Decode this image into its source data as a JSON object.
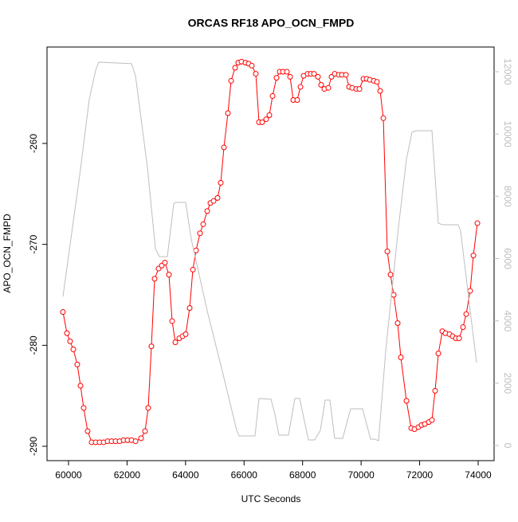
{
  "chart_data": {
    "type": "line",
    "title": "ORCAS RF18 APO_OCN_FMPD",
    "x_label": "UTC Seconds",
    "y_label": "APO_OCN_FMPD",
    "xlim": [
      59265,
      74545
    ],
    "xticks": [
      60000,
      62000,
      64000,
      66000,
      68000,
      70000,
      72000,
      74000
    ],
    "ylim": [
      -291.42,
      -250.45
    ],
    "yticks": [
      -290,
      -280,
      -270,
      -260
    ],
    "y2lim": [
      -486,
      12793
    ],
    "y2ticks": [
      0,
      2000,
      4000,
      6000,
      8000,
      10000,
      12000
    ],
    "series": [
      {
        "color": "#ff0000",
        "markers": true,
        "axis": "y",
        "x": [
          59809,
          59946,
          60054,
          60163,
          60300,
          60409,
          60518,
          60654,
          60790,
          60927,
          61063,
          61199,
          61336,
          61472,
          61608,
          61745,
          61881,
          62017,
          62154,
          62290,
          62479,
          62615,
          62724,
          62833,
          62942,
          63078,
          63187,
          63296,
          63432,
          63541,
          63650,
          63786,
          63895,
          64004,
          64141,
          64250,
          64358,
          64495,
          64604,
          64740,
          64849,
          64958,
          65094,
          65203,
          65312,
          65448,
          65557,
          65693,
          65802,
          65911,
          66047,
          66156,
          66265,
          66401,
          66510,
          66619,
          66755,
          66864,
          66973,
          67110,
          67219,
          67328,
          67464,
          67573,
          67682,
          67818,
          67927,
          68036,
          68172,
          68281,
          68390,
          68526,
          68635,
          68744,
          68880,
          68989,
          69098,
          69234,
          69343,
          69480,
          69589,
          69698,
          69834,
          69943,
          70079,
          70188,
          70297,
          70433,
          70542,
          70651,
          70760,
          70896,
          71005,
          71114,
          71250,
          71359,
          71550,
          71713,
          71822,
          71958,
          72067,
          72176,
          72312,
          72421,
          72530,
          72640,
          72776,
          72885,
          73021,
          73130,
          73239,
          73348,
          73484,
          73593,
          73729,
          73838,
          73974
        ],
        "values": [
          -276.7,
          -278.8,
          -279.6,
          -280.4,
          -281.9,
          -284.0,
          -286.2,
          -288.5,
          -289.6,
          -289.6,
          -289.6,
          -289.6,
          -289.5,
          -289.5,
          -289.5,
          -289.5,
          -289.4,
          -289.4,
          -289.4,
          -289.5,
          -289.2,
          -288.5,
          -286.2,
          -280.1,
          -273.4,
          -272.4,
          -272.1,
          -271.8,
          -273.0,
          -277.6,
          -279.7,
          -279.3,
          -279.1,
          -278.9,
          -276.3,
          -272.5,
          -270.6,
          -268.9,
          -268.0,
          -266.7,
          -265.9,
          -265.7,
          -265.4,
          -263.9,
          -260.4,
          -257.0,
          -253.8,
          -252.5,
          -252.0,
          -251.9,
          -252.0,
          -252.1,
          -252.3,
          -253.1,
          -257.9,
          -257.9,
          -257.6,
          -257.2,
          -255.3,
          -253.5,
          -252.9,
          -252.9,
          -252.9,
          -253.4,
          -255.7,
          -255.7,
          -254.4,
          -253.3,
          -253.1,
          -253.1,
          -253.1,
          -253.4,
          -254.2,
          -254.6,
          -254.5,
          -253.4,
          -253.1,
          -253.2,
          -253.2,
          -253.2,
          -254.4,
          -254.5,
          -254.6,
          -254.6,
          -253.6,
          -253.6,
          -253.7,
          -253.8,
          -253.9,
          -254.8,
          -257.5,
          -270.7,
          -273.0,
          -275.0,
          -277.8,
          -281.2,
          -285.5,
          -288.2,
          -288.3,
          -288.1,
          -287.9,
          -287.8,
          -287.6,
          -287.4,
          -284.5,
          -280.8,
          -278.6,
          -278.8,
          -278.9,
          -279.1,
          -279.3,
          -279.3,
          -278.2,
          -276.9,
          -274.6,
          -271.1,
          -267.9
        ]
      },
      {
        "color": "#bebebe",
        "markers": false,
        "axis": "y2",
        "x": [
          59809,
          60381,
          60708,
          60926,
          61035,
          62152,
          62288,
          62697,
          62969,
          63105,
          63378,
          63596,
          63650,
          64004,
          64195,
          64740,
          65285,
          65748,
          65830,
          66375,
          66511,
          66920,
          67055,
          67191,
          67518,
          67736,
          67900,
          68199,
          68417,
          68608,
          68771,
          68935,
          69098,
          69371,
          69643,
          70052,
          70324,
          70460,
          70596,
          70842,
          71277,
          71550,
          71740,
          71877,
          72421,
          72639,
          72776,
          73320,
          73402,
          73729,
          73947
        ],
        "values": [
          4785,
          8675,
          11106,
          12050,
          12308,
          12257,
          11873,
          8930,
          6320,
          6065,
          6065,
          7753,
          7805,
          7805,
          6628,
          4324,
          2277,
          486,
          307,
          307,
          1510,
          1484,
          998,
          333,
          333,
          1510,
          1510,
          179,
          179,
          486,
          1459,
          1459,
          230,
          230,
          1177,
          1177,
          205,
          205,
          154,
          3045,
          7011,
          9187,
          10056,
          10107,
          10107,
          7139,
          7088,
          7088,
          6883,
          4324,
          2661
        ]
      }
    ]
  }
}
